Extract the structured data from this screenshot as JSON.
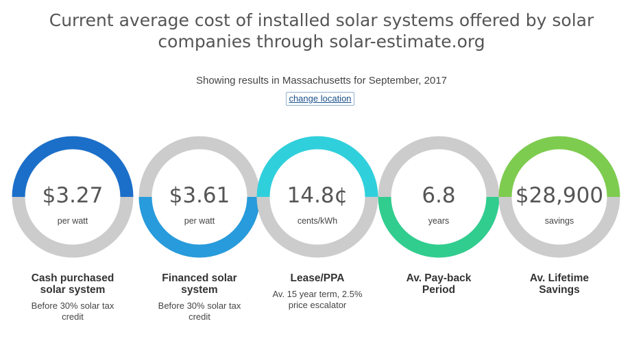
{
  "header": {
    "title_line1": "Current average cost of installed solar systems offered by solar",
    "title_line2": "companies through solar-estimate.org",
    "subtitle": "Showing results in Massachusetts for September, 2017",
    "change_location_label": "change location"
  },
  "colors": {
    "ring_track": "#cccccc",
    "cash": "#1b6fc9",
    "financed": "#279bdb",
    "lease": "#2fd0dc",
    "payback": "#30cd8f",
    "lifetime": "#7dcc4f"
  },
  "cards": [
    {
      "value": "$3.27",
      "unit": "per watt",
      "title_line1": "Cash purchased",
      "title_line2": "solar system",
      "sub_line1": "Before 30% solar tax",
      "sub_line2": "credit",
      "arc_half": "top"
    },
    {
      "value": "$3.61",
      "unit": "per watt",
      "title_line1": "Financed solar",
      "title_line2": "system",
      "sub_line1": "Before 30% solar tax",
      "sub_line2": "credit",
      "arc_half": "bottom"
    },
    {
      "value": "14.8¢",
      "unit": "cents/kWh",
      "title_line1": "Lease/PPA",
      "title_line2": "",
      "sub_line1": "Av. 15 year term, 2.5%",
      "sub_line2": "price escalator",
      "arc_half": "top"
    },
    {
      "value": "6.8",
      "unit": "years",
      "title_line1": "Av. Pay-back",
      "title_line2": "Period",
      "sub_line1": "",
      "sub_line2": "",
      "arc_half": "bottom"
    },
    {
      "value": "$28,900",
      "unit": "savings",
      "title_line1": "Av. Lifetime",
      "title_line2": "Savings",
      "sub_line1": "",
      "sub_line2": "",
      "arc_half": "top"
    }
  ]
}
